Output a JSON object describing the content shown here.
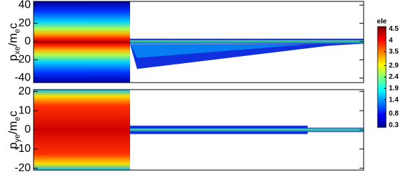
{
  "chart_data": [
    {
      "type": "heatmap",
      "ylabel_parts": [
        "p",
        "xe",
        "/m",
        "e",
        "c"
      ],
      "ylim": [
        -45,
        44
      ],
      "yticks": [
        40,
        20,
        0,
        -20,
        -40
      ]
    },
    {
      "type": "heatmap",
      "ylabel_parts": [
        "p",
        "ye",
        "/m",
        "e",
        "c"
      ],
      "ylim": [
        -21,
        21
      ],
      "yticks": [
        20,
        10,
        0,
        -10,
        -20
      ]
    }
  ],
  "colorbar": {
    "label": "ele",
    "clim": [
      0.2,
      4.6
    ],
    "ticks": [
      0.3,
      0.8,
      1.4,
      1.9,
      2.4,
      2.9,
      3.5,
      4.0,
      4.5
    ]
  }
}
